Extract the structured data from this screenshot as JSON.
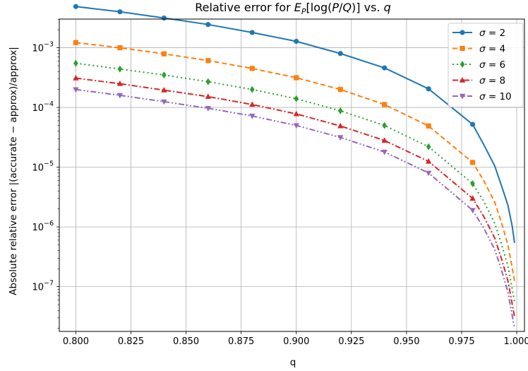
{
  "chart_data": {
    "type": "line",
    "title_prefix": "Relative error for ",
    "title_math": "E",
    "title_math_sub": "P",
    "title_suffix": "[log(P/Q)] vs. q",
    "title_middle": "[log(",
    "title_P": "P",
    "title_slash": "/",
    "title_Q": "Q",
    "title_close": ")] vs. ",
    "title_q": "q",
    "xlabel": "q",
    "ylabel": "Absolute relative error |(accurate − approx)/approx|",
    "xlim": [
      0.7925,
      1.0035
    ],
    "ylim_log10": [
      -7.75,
      -2.52
    ],
    "y_scale": "log",
    "grid": true,
    "legend_placement": "top-right",
    "x_ticks": [
      {
        "value": 0.8,
        "label": "0.800"
      },
      {
        "value": 0.825,
        "label": "0.825"
      },
      {
        "value": 0.85,
        "label": "0.850"
      },
      {
        "value": 0.875,
        "label": "0.875"
      },
      {
        "value": 0.9,
        "label": "0.900"
      },
      {
        "value": 0.925,
        "label": "0.925"
      },
      {
        "value": 0.95,
        "label": "0.950"
      },
      {
        "value": 0.975,
        "label": "0.975"
      },
      {
        "value": 1.0,
        "label": "1.000"
      }
    ],
    "y_ticks": [
      {
        "exp": -3,
        "label": "10",
        "sup": "−3"
      },
      {
        "exp": -4,
        "label": "10",
        "sup": "−4"
      },
      {
        "exp": -5,
        "label": "10",
        "sup": "−5"
      },
      {
        "exp": -6,
        "label": "10",
        "sup": "−6"
      },
      {
        "exp": -7,
        "label": "10",
        "sup": "−7"
      }
    ],
    "series": [
      {
        "name": "σ = 2",
        "sigma": "σ",
        "eq": " = 2",
        "color": "#1f77b4",
        "dash": "",
        "marker": "circle",
        "points": [
          [
            0.8,
            0.0049
          ],
          [
            0.82,
            0.004
          ],
          [
            0.84,
            0.00315
          ],
          [
            0.86,
            0.00245
          ],
          [
            0.88,
            0.0018
          ],
          [
            0.9,
            0.00128
          ],
          [
            0.92,
            0.0008
          ],
          [
            0.94,
            0.00046
          ],
          [
            0.96,
            0.000205
          ],
          [
            0.98,
            5.2e-05
          ]
        ],
        "tail": [
          [
            0.985,
            2.4e-05
          ],
          [
            0.99,
            1.05e-05
          ],
          [
            0.993,
            5e-06
          ],
          [
            0.996,
            2.3e-06
          ],
          [
            0.998,
            1e-06
          ],
          [
            0.999,
            5.4e-07
          ]
        ]
      },
      {
        "name": "σ = 4",
        "sigma": "σ",
        "eq": " = 4",
        "color": "#ff7f0e",
        "dash": "7,4",
        "marker": "square",
        "points": [
          [
            0.8,
            0.00122
          ],
          [
            0.82,
            0.001
          ],
          [
            0.84,
            0.00079
          ],
          [
            0.86,
            0.00061
          ],
          [
            0.88,
            0.00045
          ],
          [
            0.9,
            0.000315
          ],
          [
            0.92,
            0.0002
          ],
          [
            0.94,
            0.000112
          ],
          [
            0.96,
            4.9e-05
          ],
          [
            0.98,
            1.2e-05
          ]
        ],
        "tail": [
          [
            0.985,
            6e-06
          ],
          [
            0.99,
            2.6e-06
          ],
          [
            0.993,
            1.2e-06
          ],
          [
            0.996,
            5e-07
          ],
          [
            0.998,
            2e-07
          ],
          [
            0.999,
            1.25e-07
          ]
        ]
      },
      {
        "name": "σ = 6",
        "sigma": "σ",
        "eq": " = 6",
        "color": "#2ca02c",
        "dash": "2,4",
        "marker": "diamond",
        "points": [
          [
            0.8,
            0.00055
          ],
          [
            0.82,
            0.00044
          ],
          [
            0.84,
            0.00035
          ],
          [
            0.86,
            0.00027
          ],
          [
            0.88,
            0.0002
          ],
          [
            0.9,
            0.00014
          ],
          [
            0.92,
            8.8e-05
          ],
          [
            0.94,
            5e-05
          ],
          [
            0.96,
            2.2e-05
          ],
          [
            0.98,
            5.3e-06
          ]
        ],
        "tail": [
          [
            0.985,
            2.7e-06
          ],
          [
            0.99,
            1.15e-06
          ],
          [
            0.993,
            5.3e-07
          ],
          [
            0.996,
            2.2e-07
          ],
          [
            0.998,
            9e-08
          ],
          [
            0.999,
            5.5e-08
          ]
        ]
      },
      {
        "name": "σ = 8",
        "sigma": "σ",
        "eq": " = 8",
        "color": "#d62728",
        "dash": "8,3,2,3",
        "marker": "triangle-up",
        "points": [
          [
            0.8,
            0.00031
          ],
          [
            0.82,
            0.00025
          ],
          [
            0.84,
            0.000195
          ],
          [
            0.86,
            0.000152
          ],
          [
            0.88,
            0.000112
          ],
          [
            0.9,
            7.8e-05
          ],
          [
            0.92,
            4.9e-05
          ],
          [
            0.94,
            2.8e-05
          ],
          [
            0.96,
            1.25e-05
          ],
          [
            0.98,
            3e-06
          ]
        ],
        "tail": [
          [
            0.985,
            1.5e-06
          ],
          [
            0.99,
            6.5e-07
          ],
          [
            0.993,
            3e-07
          ],
          [
            0.996,
            1.25e-07
          ],
          [
            0.998,
            5e-08
          ],
          [
            0.999,
            3.1e-08
          ]
        ]
      },
      {
        "name": "σ = 10",
        "sigma": "σ",
        "eq": " = 10",
        "color": "#9467bd",
        "dash": "8,3,2,3,2,3",
        "marker": "triangle-down",
        "points": [
          [
            0.8,
            0.0002
          ],
          [
            0.82,
            0.00016
          ],
          [
            0.84,
            0.000125
          ],
          [
            0.86,
            9.7e-05
          ],
          [
            0.88,
            7.2e-05
          ],
          [
            0.9,
            5e-05
          ],
          [
            0.92,
            3.15e-05
          ],
          [
            0.94,
            1.8e-05
          ],
          [
            0.96,
            8e-06
          ],
          [
            0.98,
            1.9e-06
          ]
        ],
        "tail": [
          [
            0.985,
            9.6e-07
          ],
          [
            0.99,
            4.2e-07
          ],
          [
            0.993,
            1.95e-07
          ],
          [
            0.996,
            8e-08
          ],
          [
            0.998,
            3.2e-08
          ],
          [
            0.999,
            2e-08
          ]
        ]
      }
    ]
  }
}
